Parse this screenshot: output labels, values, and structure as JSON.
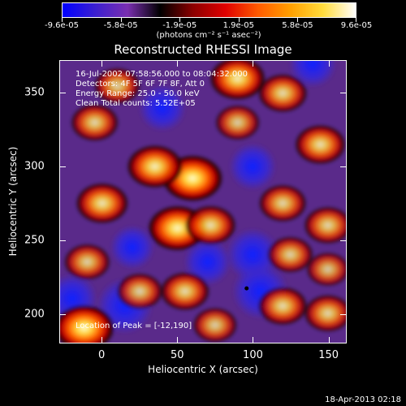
{
  "colorbar": {
    "labels": [
      "-9.6e-05",
      "-5.8e-05",
      "-1.9e-05",
      "1.9e-05",
      "5.8e-05",
      "9.6e-05"
    ],
    "unit": "(photons cm⁻² s⁻¹ asec⁻²)",
    "colors": [
      "#0000ff",
      "#3b1fd0",
      "#7a2fb0",
      "#000000",
      "#8b0000",
      "#e00000",
      "#ff5a00",
      "#ffa000",
      "#ffdc3c",
      "#ffffff"
    ]
  },
  "title": "Reconstructed RHESSI Image",
  "info": {
    "time": "16-Jul-2002 07:58:56.000 to 08:04:32.000",
    "detectors": "Detectors: 4F 5F 6F 7F 8F, Att 0",
    "energy": "Energy Range: 25.0 - 50.0 keV",
    "method": "Clean     Total counts: 5.52E+05"
  },
  "peak_label": "Location of Peak = [-12,190]",
  "chart_data": {
    "type": "heatmap",
    "xlabel": "Heliocentric X (arcsec)",
    "ylabel": "Heliocentric Y (arcsec)",
    "xlim": [
      -28,
      162
    ],
    "ylim": [
      180,
      372
    ],
    "xticks": [
      0,
      50,
      100,
      150
    ],
    "yticks": [
      200,
      250,
      300,
      350
    ],
    "peak": [
      -12,
      190
    ],
    "blobs": [
      {
        "x": 60,
        "y": 292,
        "level": 1.0
      },
      {
        "x": 35,
        "y": 300,
        "level": 0.85
      },
      {
        "x": 50,
        "y": 258,
        "level": 0.95
      },
      {
        "x": 72,
        "y": 260,
        "level": 0.7
      },
      {
        "x": 90,
        "y": 360,
        "level": 0.85
      },
      {
        "x": 120,
        "y": 350,
        "level": 0.65
      },
      {
        "x": 145,
        "y": 315,
        "level": 0.7
      },
      {
        "x": -5,
        "y": 330,
        "level": 0.6
      },
      {
        "x": 0,
        "y": 275,
        "level": 0.75
      },
      {
        "x": 120,
        "y": 275,
        "level": 0.6
      },
      {
        "x": 150,
        "y": 260,
        "level": 0.6
      },
      {
        "x": 125,
        "y": 240,
        "level": 0.55
      },
      {
        "x": -10,
        "y": 235,
        "level": 0.55
      },
      {
        "x": 25,
        "y": 215,
        "level": 0.55
      },
      {
        "x": 55,
        "y": 215,
        "level": 0.65
      },
      {
        "x": 90,
        "y": 330,
        "level": 0.5
      },
      {
        "x": -12,
        "y": 190,
        "level": 1.0
      },
      {
        "x": 120,
        "y": 205,
        "level": 0.65
      },
      {
        "x": 150,
        "y": 200,
        "level": 0.6
      },
      {
        "x": 10,
        "y": 355,
        "level": 0.55
      },
      {
        "x": 75,
        "y": 192,
        "level": 0.5
      },
      {
        "x": 150,
        "y": 230,
        "level": 0.45
      }
    ],
    "dips": [
      {
        "x": 15,
        "y": 205,
        "level": 0.8
      },
      {
        "x": -20,
        "y": 210,
        "level": 0.6
      },
      {
        "x": 100,
        "y": 240,
        "level": 0.7
      },
      {
        "x": 105,
        "y": 215,
        "level": 0.8
      },
      {
        "x": 70,
        "y": 235,
        "level": 0.5
      },
      {
        "x": 40,
        "y": 340,
        "level": 0.5
      },
      {
        "x": 140,
        "y": 370,
        "level": 0.5
      },
      {
        "x": 100,
        "y": 300,
        "level": 0.5
      },
      {
        "x": 20,
        "y": 245,
        "level": 0.4
      }
    ]
  },
  "footer": "18-Apr-2013 02:18"
}
